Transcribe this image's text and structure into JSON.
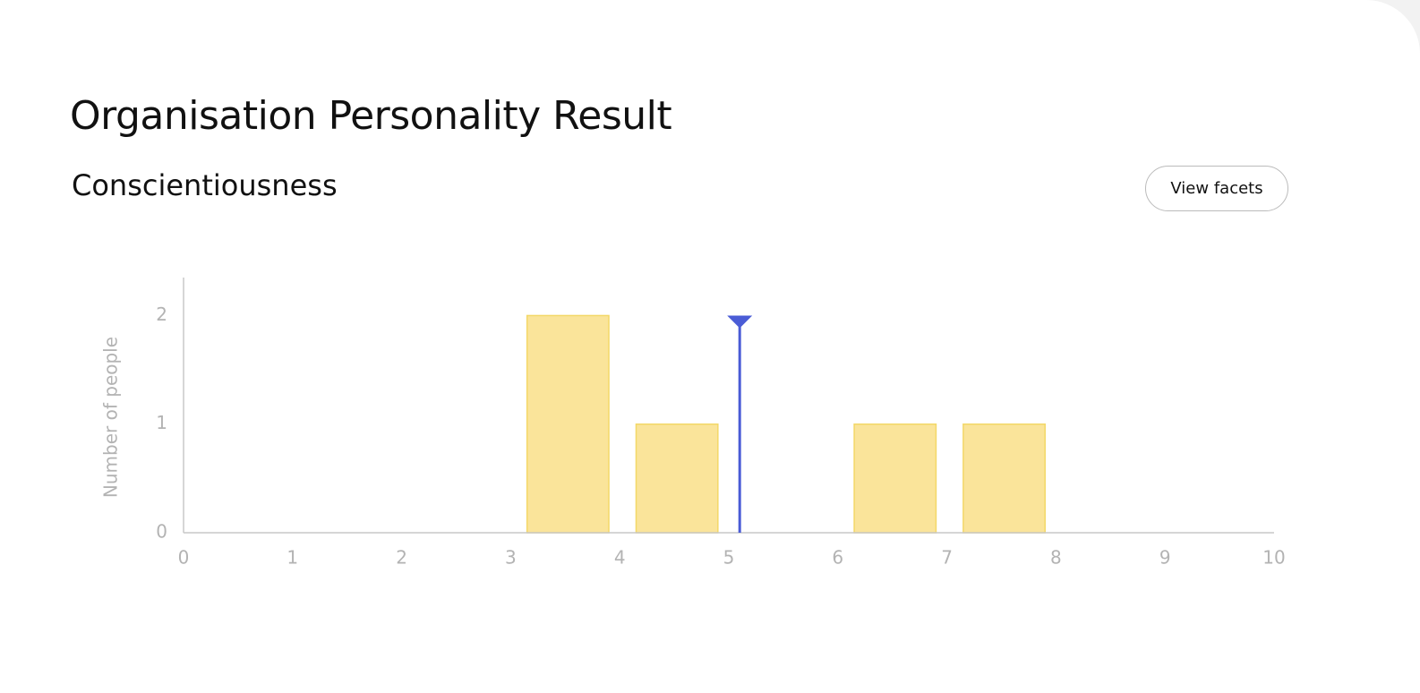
{
  "page": {
    "title": "Organisation Personality Result",
    "subtitle": "Conscientiousness",
    "button": "View facets"
  },
  "chart_data": {
    "type": "histogram",
    "ylabel": "Number of people",
    "bins": [
      0,
      1,
      2,
      3,
      4,
      5,
      6,
      7,
      8,
      9,
      10
    ],
    "values": [
      0,
      0,
      0,
      2,
      1,
      0,
      1,
      1,
      0,
      0
    ],
    "color": "#fae49a",
    "edge_color": "#f3d868",
    "marker": 5.1,
    "marker_color": "#4a5cd6",
    "xlim": [
      0,
      10
    ],
    "xticks": [
      0,
      1,
      2,
      3,
      4,
      5,
      6,
      7,
      8,
      9,
      10
    ],
    "ylim": [
      0,
      2.35
    ],
    "yticks": [
      0,
      1,
      2
    ],
    "grid": false
  }
}
